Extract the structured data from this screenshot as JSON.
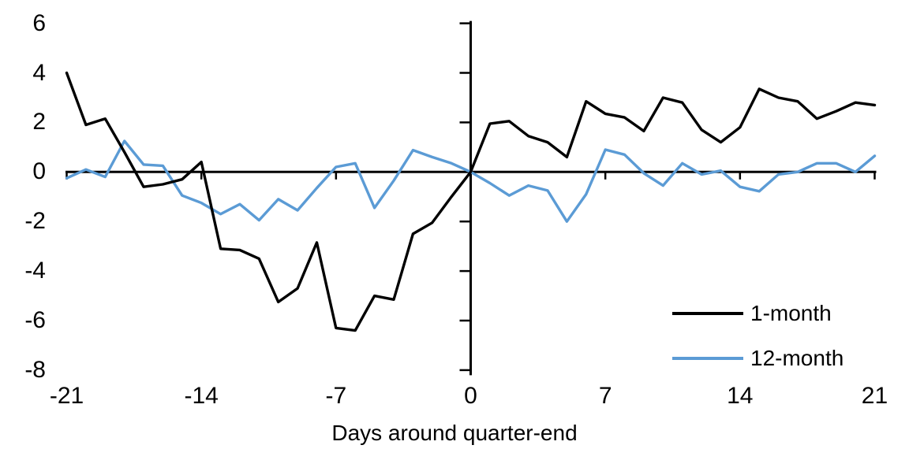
{
  "chart_data": {
    "type": "line",
    "title": "",
    "xlabel": "Days around quarter-end",
    "ylabel": "",
    "xlim": [
      -21,
      21
    ],
    "ylim": [
      -8,
      6
    ],
    "grid": false,
    "legend_position": "inside-bottom-right",
    "axis_color": "#000000",
    "x_ticks": [
      -21,
      -14,
      -7,
      0,
      7,
      14,
      21
    ],
    "y_ticks": [
      6,
      4,
      2,
      0,
      -2,
      -4,
      -6,
      -8
    ],
    "x": [
      -21,
      -20,
      -19,
      -18,
      -17,
      -16,
      -15,
      -14,
      -13,
      -12,
      -11,
      -10,
      -9,
      -8,
      -7,
      -6,
      -5,
      -4,
      -3,
      -2,
      -1,
      0,
      1,
      2,
      3,
      4,
      5,
      6,
      7,
      8,
      9,
      10,
      11,
      12,
      13,
      14,
      15,
      16,
      17,
      18,
      19,
      20,
      21
    ],
    "series": [
      {
        "name": "1-month",
        "color": "#000000",
        "values": [
          4.0,
          1.9,
          2.15,
          0.8,
          -0.6,
          -0.5,
          -0.3,
          0.4,
          -3.1,
          -3.15,
          -3.5,
          -5.25,
          -4.7,
          -2.85,
          -6.3,
          -6.4,
          -5.0,
          -5.15,
          -2.5,
          -2.05,
          -1.0,
          0.0,
          1.95,
          2.05,
          1.45,
          1.2,
          0.6,
          2.85,
          2.35,
          2.2,
          1.65,
          3.0,
          2.8,
          1.7,
          1.2,
          1.8,
          3.35,
          3.0,
          2.85,
          2.15,
          2.45,
          2.8,
          2.7
        ]
      },
      {
        "name": "12-month",
        "color": "#5B9BD5",
        "values": [
          -0.25,
          0.1,
          -0.2,
          1.25,
          0.3,
          0.25,
          -0.95,
          -1.25,
          -1.7,
          -1.3,
          -1.95,
          -1.1,
          -1.55,
          -0.65,
          0.2,
          0.35,
          -1.45,
          -0.35,
          0.88,
          0.6,
          0.35,
          0.0,
          -0.45,
          -0.95,
          -0.55,
          -0.75,
          -2.0,
          -0.9,
          0.9,
          0.7,
          -0.05,
          -0.55,
          0.35,
          -0.1,
          0.05,
          -0.6,
          -0.78,
          -0.1,
          0.0,
          0.35,
          0.35,
          0.0,
          0.65
        ]
      }
    ]
  }
}
